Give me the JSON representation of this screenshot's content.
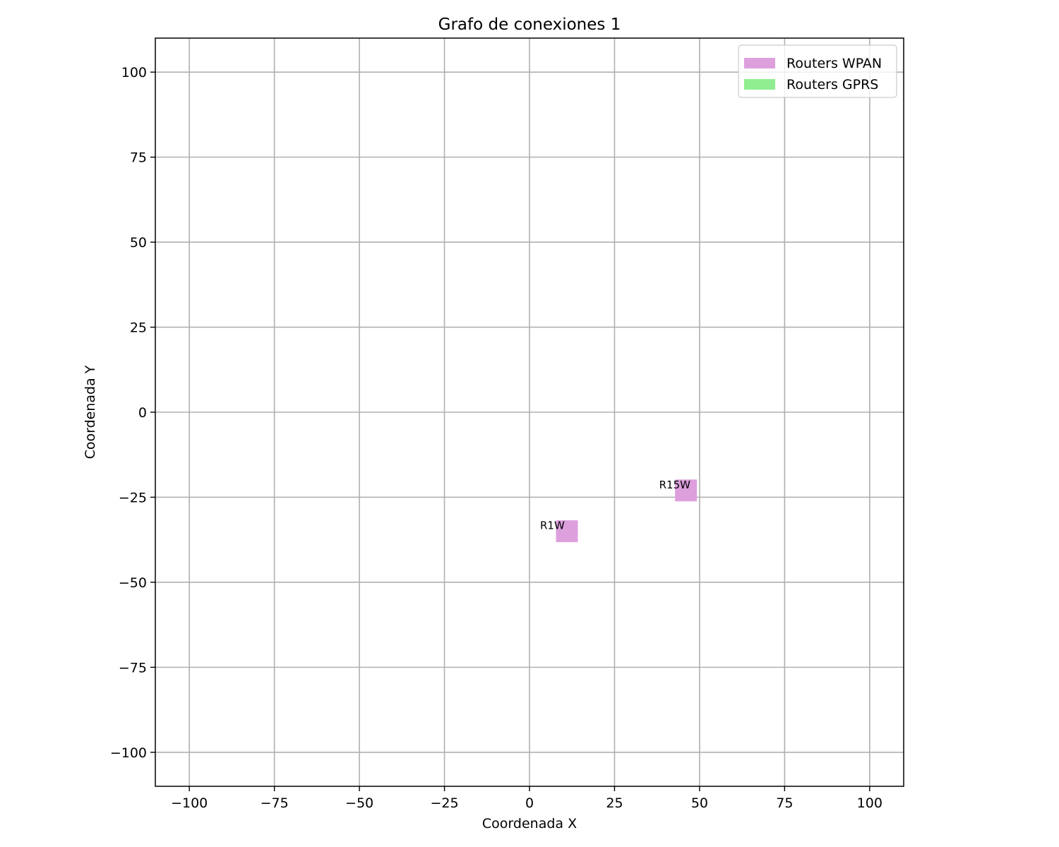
{
  "chart_data": {
    "type": "scatter",
    "title": "Grafo de conexiones 1",
    "xlabel": "Coordenada X",
    "ylabel": "Coordenada Y",
    "xlim": [
      -110,
      110
    ],
    "ylim": [
      -110,
      110
    ],
    "x_ticks": [
      -100,
      -75,
      -50,
      -25,
      0,
      25,
      50,
      75,
      100
    ],
    "y_ticks": [
      -100,
      -75,
      -50,
      -25,
      0,
      25,
      50,
      75,
      100
    ],
    "x_tick_labels": [
      "−100",
      "−75",
      "−50",
      "−25",
      "0",
      "25",
      "50",
      "75",
      "100"
    ],
    "y_tick_labels": [
      "−100",
      "−75",
      "−50",
      "−25",
      "0",
      "25",
      "50",
      "75",
      "100"
    ],
    "grid": true,
    "legend_position": "top-right",
    "series": [
      {
        "name": "Routers WPAN",
        "color": "#dda0dd",
        "marker": "square",
        "points": [
          {
            "label": "R1W",
            "x": 11,
            "y": -35
          },
          {
            "label": "R15W",
            "x": 46,
            "y": -23
          }
        ]
      },
      {
        "name": "Routers GPRS",
        "color": "#90ee90",
        "marker": "square",
        "points": []
      }
    ]
  }
}
